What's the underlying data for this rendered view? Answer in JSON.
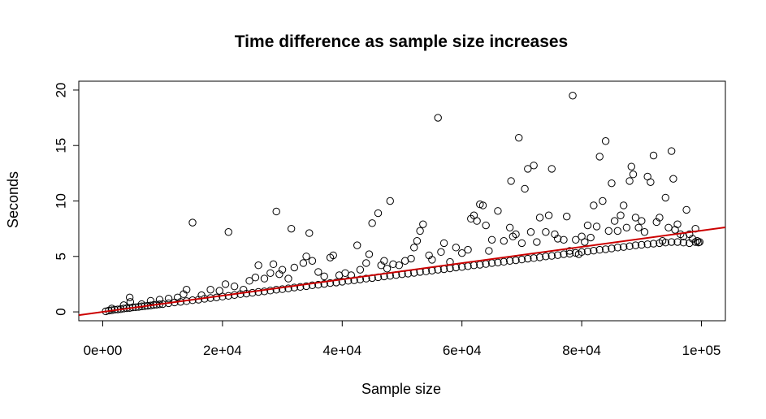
{
  "chart_data": {
    "type": "scatter",
    "title": "Time difference as sample size increases",
    "xlabel": "Sample size",
    "ylabel": "Seconds",
    "xlim": [
      0,
      100000
    ],
    "ylim": [
      0,
      20
    ],
    "x_ticks": [
      0,
      20000,
      40000,
      60000,
      80000,
      100000
    ],
    "x_tick_labels": [
      "0e+00",
      "2e+04",
      "4e+04",
      "6e+04",
      "8e+04",
      "1e+05"
    ],
    "y_ticks": [
      0,
      5,
      10,
      15,
      20
    ],
    "y_tick_labels": [
      "0",
      "5",
      "10",
      "15",
      "20"
    ],
    "grid": false,
    "legend": "none",
    "point_style": "open circle",
    "point_color": "#000000",
    "fit_line": {
      "type": "linear",
      "color": "#cc0000",
      "intercept": 0.0,
      "slope": 7.33e-05
    },
    "series": [
      {
        "points": [
          [
            500,
            0.05
          ],
          [
            1000,
            0.12
          ],
          [
            1500,
            0.15
          ],
          [
            2000,
            0.2
          ],
          [
            2500,
            0.22
          ],
          [
            3000,
            0.25
          ],
          [
            3500,
            0.3
          ],
          [
            4000,
            0.33
          ],
          [
            4500,
            0.35
          ],
          [
            5000,
            0.4
          ],
          [
            5500,
            0.42
          ],
          [
            6000,
            0.45
          ],
          [
            6500,
            0.5
          ],
          [
            7000,
            0.52
          ],
          [
            7500,
            0.55
          ],
          [
            8000,
            0.58
          ],
          [
            8500,
            0.62
          ],
          [
            9000,
            0.65
          ],
          [
            9500,
            0.68
          ],
          [
            10000,
            0.7
          ],
          [
            11000,
            0.78
          ],
          [
            12000,
            0.85
          ],
          [
            13000,
            0.9
          ],
          [
            14000,
            0.97
          ],
          [
            15000,
            1.05
          ],
          [
            16000,
            1.1
          ],
          [
            17000,
            1.18
          ],
          [
            18000,
            1.25
          ],
          [
            19000,
            1.3
          ],
          [
            20000,
            1.38
          ],
          [
            21000,
            1.45
          ],
          [
            22000,
            1.52
          ],
          [
            23000,
            1.6
          ],
          [
            24000,
            1.65
          ],
          [
            25000,
            1.72
          ],
          [
            26000,
            1.8
          ],
          [
            27000,
            1.85
          ],
          [
            28000,
            1.92
          ],
          [
            29000,
            2.0
          ],
          [
            30000,
            2.05
          ],
          [
            31000,
            2.12
          ],
          [
            32000,
            2.2
          ],
          [
            33000,
            2.25
          ],
          [
            34000,
            2.32
          ],
          [
            35000,
            2.4
          ],
          [
            36000,
            2.45
          ],
          [
            37000,
            2.52
          ],
          [
            38000,
            2.6
          ],
          [
            39000,
            2.65
          ],
          [
            40000,
            2.72
          ],
          [
            41000,
            2.8
          ],
          [
            42000,
            2.85
          ],
          [
            43000,
            2.92
          ],
          [
            44000,
            3.0
          ],
          [
            45000,
            3.05
          ],
          [
            46000,
            3.12
          ],
          [
            47000,
            3.2
          ],
          [
            48000,
            3.25
          ],
          [
            49000,
            3.32
          ],
          [
            50000,
            3.4
          ],
          [
            51000,
            3.45
          ],
          [
            52000,
            3.52
          ],
          [
            53000,
            3.6
          ],
          [
            54000,
            3.65
          ],
          [
            55000,
            3.72
          ],
          [
            56000,
            3.8
          ],
          [
            57000,
            3.85
          ],
          [
            58000,
            3.92
          ],
          [
            59000,
            4.0
          ],
          [
            60000,
            4.05
          ],
          [
            61000,
            4.12
          ],
          [
            62000,
            4.2
          ],
          [
            63000,
            4.25
          ],
          [
            64000,
            4.32
          ],
          [
            65000,
            4.4
          ],
          [
            66000,
            4.45
          ],
          [
            67000,
            4.52
          ],
          [
            68000,
            4.6
          ],
          [
            69000,
            4.65
          ],
          [
            70000,
            4.72
          ],
          [
            71000,
            4.8
          ],
          [
            72000,
            4.85
          ],
          [
            73000,
            4.92
          ],
          [
            74000,
            5.0
          ],
          [
            75000,
            5.05
          ],
          [
            76000,
            5.12
          ],
          [
            77000,
            5.2
          ],
          [
            78000,
            5.25
          ],
          [
            79000,
            5.32
          ],
          [
            80000,
            5.4
          ],
          [
            81000,
            5.45
          ],
          [
            82000,
            5.52
          ],
          [
            83000,
            5.6
          ],
          [
            84000,
            5.65
          ],
          [
            85000,
            5.72
          ],
          [
            86000,
            5.8
          ],
          [
            87000,
            5.85
          ],
          [
            88000,
            5.92
          ],
          [
            89000,
            6.0
          ],
          [
            90000,
            6.05
          ],
          [
            91000,
            6.1
          ],
          [
            92000,
            6.15
          ],
          [
            93000,
            6.2
          ],
          [
            94000,
            6.25
          ],
          [
            95000,
            6.3
          ],
          [
            96000,
            6.3
          ],
          [
            97000,
            6.25
          ],
          [
            98000,
            6.2
          ],
          [
            99000,
            6.3
          ],
          [
            99500,
            6.25
          ],
          [
            1500,
            0.3
          ],
          [
            3500,
            0.6
          ],
          [
            4500,
            1.3
          ],
          [
            4600,
            0.9
          ],
          [
            6500,
            0.7
          ],
          [
            8000,
            1.0
          ],
          [
            9500,
            1.1
          ],
          [
            11000,
            1.2
          ],
          [
            12500,
            1.3
          ],
          [
            13500,
            1.6
          ],
          [
            14000,
            2.0
          ],
          [
            15000,
            8.05
          ],
          [
            16500,
            1.5
          ],
          [
            18000,
            2.0
          ],
          [
            19500,
            1.9
          ],
          [
            20500,
            2.5
          ],
          [
            21000,
            7.2
          ],
          [
            22000,
            2.3
          ],
          [
            23500,
            2.0
          ],
          [
            24500,
            2.8
          ],
          [
            25500,
            3.1
          ],
          [
            26000,
            4.2
          ],
          [
            27000,
            3.0
          ],
          [
            28000,
            3.5
          ],
          [
            28500,
            4.3
          ],
          [
            29000,
            9.05
          ],
          [
            29500,
            3.4
          ],
          [
            30000,
            3.8
          ],
          [
            31000,
            3.0
          ],
          [
            31500,
            7.5
          ],
          [
            32000,
            4.0
          ],
          [
            33500,
            4.4
          ],
          [
            34000,
            5.0
          ],
          [
            34500,
            7.1
          ],
          [
            35000,
            4.6
          ],
          [
            36000,
            3.6
          ],
          [
            37000,
            3.2
          ],
          [
            38000,
            4.9
          ],
          [
            38500,
            5.1
          ],
          [
            39500,
            3.3
          ],
          [
            40500,
            3.5
          ],
          [
            41500,
            3.3
          ],
          [
            42500,
            6.0
          ],
          [
            43000,
            3.8
          ],
          [
            44000,
            4.4
          ],
          [
            44500,
            5.2
          ],
          [
            45000,
            8.0
          ],
          [
            46000,
            8.9
          ],
          [
            46500,
            4.2
          ],
          [
            47000,
            4.6
          ],
          [
            47500,
            3.9
          ],
          [
            48000,
            10.0
          ],
          [
            48500,
            4.3
          ],
          [
            49500,
            4.2
          ],
          [
            50500,
            4.6
          ],
          [
            51500,
            4.8
          ],
          [
            52000,
            5.8
          ],
          [
            52500,
            6.4
          ],
          [
            53000,
            7.3
          ],
          [
            53500,
            7.9
          ],
          [
            54500,
            5.1
          ],
          [
            55000,
            4.7
          ],
          [
            56000,
            17.5
          ],
          [
            56500,
            5.4
          ],
          [
            57000,
            6.2
          ],
          [
            58000,
            4.5
          ],
          [
            59000,
            5.8
          ],
          [
            60000,
            5.3
          ],
          [
            61000,
            5.6
          ],
          [
            61500,
            8.4
          ],
          [
            62000,
            8.7
          ],
          [
            62500,
            8.2
          ],
          [
            63000,
            9.7
          ],
          [
            63500,
            9.6
          ],
          [
            64000,
            7.8
          ],
          [
            64500,
            5.5
          ],
          [
            65000,
            6.5
          ],
          [
            66000,
            9.1
          ],
          [
            67000,
            6.4
          ],
          [
            68000,
            7.6
          ],
          [
            68200,
            11.8
          ],
          [
            68500,
            6.8
          ],
          [
            69000,
            7.0
          ],
          [
            69500,
            15.7
          ],
          [
            70000,
            6.2
          ],
          [
            70500,
            11.1
          ],
          [
            71000,
            12.9
          ],
          [
            71500,
            7.2
          ],
          [
            72000,
            13.2
          ],
          [
            72500,
            6.3
          ],
          [
            73000,
            8.5
          ],
          [
            74000,
            7.2
          ],
          [
            74500,
            8.7
          ],
          [
            75000,
            12.9
          ],
          [
            75500,
            7.0
          ],
          [
            76000,
            6.6
          ],
          [
            77000,
            6.5
          ],
          [
            77500,
            8.6
          ],
          [
            78000,
            5.5
          ],
          [
            78500,
            19.5
          ],
          [
            79000,
            6.5
          ],
          [
            79500,
            5.2
          ],
          [
            80000,
            6.8
          ],
          [
            80500,
            6.3
          ],
          [
            81000,
            7.8
          ],
          [
            81500,
            6.7
          ],
          [
            82000,
            9.6
          ],
          [
            82500,
            7.7
          ],
          [
            83000,
            14.0
          ],
          [
            83500,
            10.0
          ],
          [
            84000,
            15.4
          ],
          [
            84500,
            7.3
          ],
          [
            85000,
            11.6
          ],
          [
            85500,
            8.2
          ],
          [
            86000,
            7.3
          ],
          [
            86500,
            8.7
          ],
          [
            87000,
            9.6
          ],
          [
            87500,
            7.6
          ],
          [
            88000,
            11.8
          ],
          [
            88300,
            13.1
          ],
          [
            88600,
            12.4
          ],
          [
            89000,
            8.5
          ],
          [
            89500,
            7.6
          ],
          [
            90000,
            8.2
          ],
          [
            90500,
            7.2
          ],
          [
            91000,
            12.2
          ],
          [
            91500,
            11.7
          ],
          [
            92000,
            14.1
          ],
          [
            92500,
            8.1
          ],
          [
            93000,
            8.5
          ],
          [
            93500,
            6.4
          ],
          [
            94000,
            10.3
          ],
          [
            94500,
            7.6
          ],
          [
            95000,
            14.5
          ],
          [
            95300,
            12.0
          ],
          [
            95600,
            7.4
          ],
          [
            96000,
            7.9
          ],
          [
            96500,
            7.0
          ],
          [
            97000,
            6.8
          ],
          [
            97500,
            9.2
          ],
          [
            98000,
            7.0
          ],
          [
            98500,
            6.6
          ],
          [
            99000,
            7.5
          ],
          [
            99300,
            6.4
          ],
          [
            99700,
            6.3
          ]
        ]
      }
    ]
  }
}
